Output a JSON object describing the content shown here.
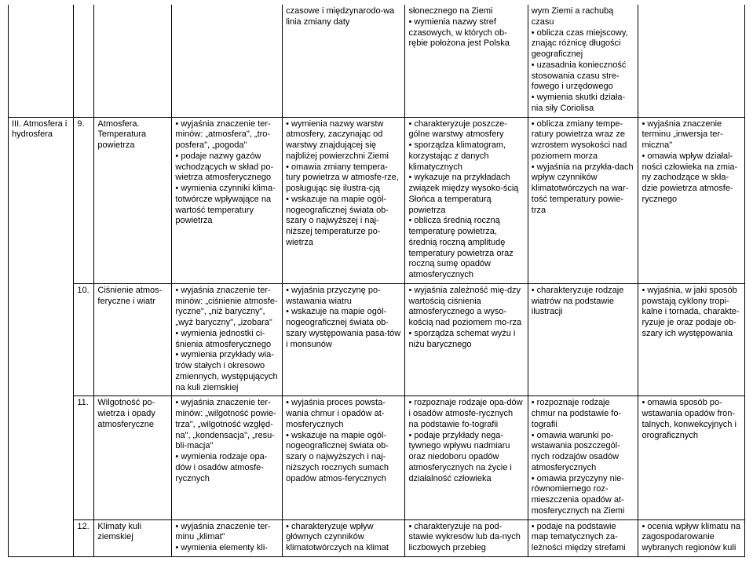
{
  "table": {
    "border_color": "#000000",
    "background_color": "#ffffff",
    "font_size_pt": 8,
    "columns": 8,
    "rows": [
      {
        "top_continuation": true,
        "cells": {
          "c1": "",
          "c2": "",
          "c3": "",
          "c4": "",
          "c5": "czasowe i międzynarodo-wa linia zmiany daty",
          "c6": "słonecznego na Ziemi\n• wymienia nazwy stref czasowych, w których ob-rębie położona jest Polska",
          "c7": "wym Ziemi a rachubą czasu\n• oblicza czas miejscowy, znając różnicę długości geograficznej\n• uzasadnia konieczność stosowania czasu stre-fowego i urzędowego\n• wymienia skutki działa-nia siły Coriolisa",
          "c8": ""
        }
      },
      {
        "section_start": true,
        "cells": {
          "c1": "III. Atmosfera i hydrosfera",
          "c2": "9.",
          "c3": "Atmosfera. Temperatura powietrza",
          "c4": "• wyjaśnia znaczenie ter-minów: „atmosfera\", „tro-posfera\", „pogoda\"\n• podaje nazwy gazów wchodzących w skład po-wietrza atmosferycznego\n• wymienia czynniki klima-totwórcze wpływające na wartość temperatury powietrza",
          "c5": "• wymienia nazwy warstw atmosfery, zaczynając od warstwy znajdującej się najbliżej powierzchni Ziemi\n• omawia zmiany tempera-tury powietrza w atmosfe-rze, posługując się ilustra-cją\n• wskazuje na mapie ogól-nogeograficznej świata ob-szary o najwyższej i naj-niższej temperaturze po-wietrza",
          "c6": "• charakteryzuje poszcze-gólne warstwy atmosfery\n• sporządza klimatogram, korzystając z danych klimatycznych\n• wykazuje na przykładach związek między wysoko-ścią Słońca a temperaturą powietrza\n• oblicza średnią roczną temperaturę powietrza, średnią roczną amplitudę temperatury powietrza oraz roczną sumę opadów atmosferycznych",
          "c7": "• oblicza zmiany tempe-ratury powietrza wraz ze wzrostem wysokości nad poziomem morza\n• wyjaśnia na przykła-dach wpływ czynników klimatotwórczych na war-tość temperatury powie-trza",
          "c8": "• wyjaśnia znaczenie terminu „inwersja ter-miczna\"\n• omawia wpływ działal-ności człowieka na zmia-ny zachodzące w skła-dzie powietrza atmosfe-rycznego"
        }
      },
      {
        "cells": {
          "c1_skip": true,
          "c2": "10.",
          "c3": "Ciśnienie atmos-feryczne i wiatr",
          "c4": "• wyjaśnia znaczenie ter-minów: „ciśnienie atmosfe-ryczne\", „niż baryczny\", „wyż baryczny\", „izobara\"\n• wymienia jednostki ci-śnienia atmosferycznego\n• wymienia przykłady wia-trów stałych i okresowo zmiennych, występujących na kuli ziemskiej",
          "c5": "• wyjaśnia przyczynę po-wstawania wiatru\n• wskazuje na mapie ogól-nogeograficznej świata ob-szary występowania pasa-tów i monsunów",
          "c6": "• wyjaśnia zależność mię-dzy wartością ciśnienia atmosferycznego a wyso-kością nad poziomem mo-rza\n• sporządza schemat wyżu i niżu barycznego",
          "c7": "• charakteryzuje rodzaje wiatrów na podstawie ilustracji",
          "c8": "• wyjaśnia, w jaki sposób powstają cyklony tropi-kalne i tornada, charakte-ryzuje je oraz podaje ob-szary ich występowania"
        }
      },
      {
        "cells": {
          "c1_skip": true,
          "c2": "11.",
          "c3": "Wilgotność po-wietrza i opady atmosferyczne",
          "c4": "• wyjaśnia znaczenie ter-minów: „wilgotność powie-trza\", „wilgotność względ-na\", „kondensacja\", „resu-bli-macja\"\n• wymienia rodzaje opa-dów i osadów atmosfe-rycznych",
          "c5": "• wyjaśnia proces powsta-wania chmur i opadów at-mosferycznych\n• wskazuje na mapie ogól-nogeograficznej świata ob-szary o najwyższych i naj-niższych rocznych sumach opadów atmos-ferycznych",
          "c6": "• rozpoznaje rodzaje opa-dów i osadów atmosfe-rycznych na podstawie fo-tografii\n• podaje przykłady nega-tywnego wpływu nadmiaru oraz niedoboru opadów atmosferycznych na życie i działalność człowieka",
          "c7": "• rozpoznaje rodzaje chmur na podstawie fo-tografii\n• omawia warunki po-wstawania poszczegól-nych rodzajów osadów atmosferycznych\n• omawia przyczyny nie-równomiernego roz-mieszczenia opadów at-mosferycznych na Ziemi",
          "c8": "• omawia sposób po-wstawania opadów fron-talnych, konwekcyjnych i orograficznych"
        }
      },
      {
        "cells": {
          "c1_skip": true,
          "c2": "12.",
          "c3": "Klimaty kuli ziemskiej",
          "c4": "• wyjaśnia znaczenie ter-minu „klimat\"\n• wymienia elementy kli-",
          "c5": "• charakteryzuje wpływ głównych czynników klimatotwórczych na klimat",
          "c6": "• charakteryzuje na pod-stawie wykresów lub da-nych liczbowych przebieg",
          "c7": "• podaje na podstawie map tematycznych za-leżności między strefami",
          "c8": "• ocenia wpływ klimatu na zagospodarowanie wybranych regionów kuli"
        }
      }
    ]
  }
}
